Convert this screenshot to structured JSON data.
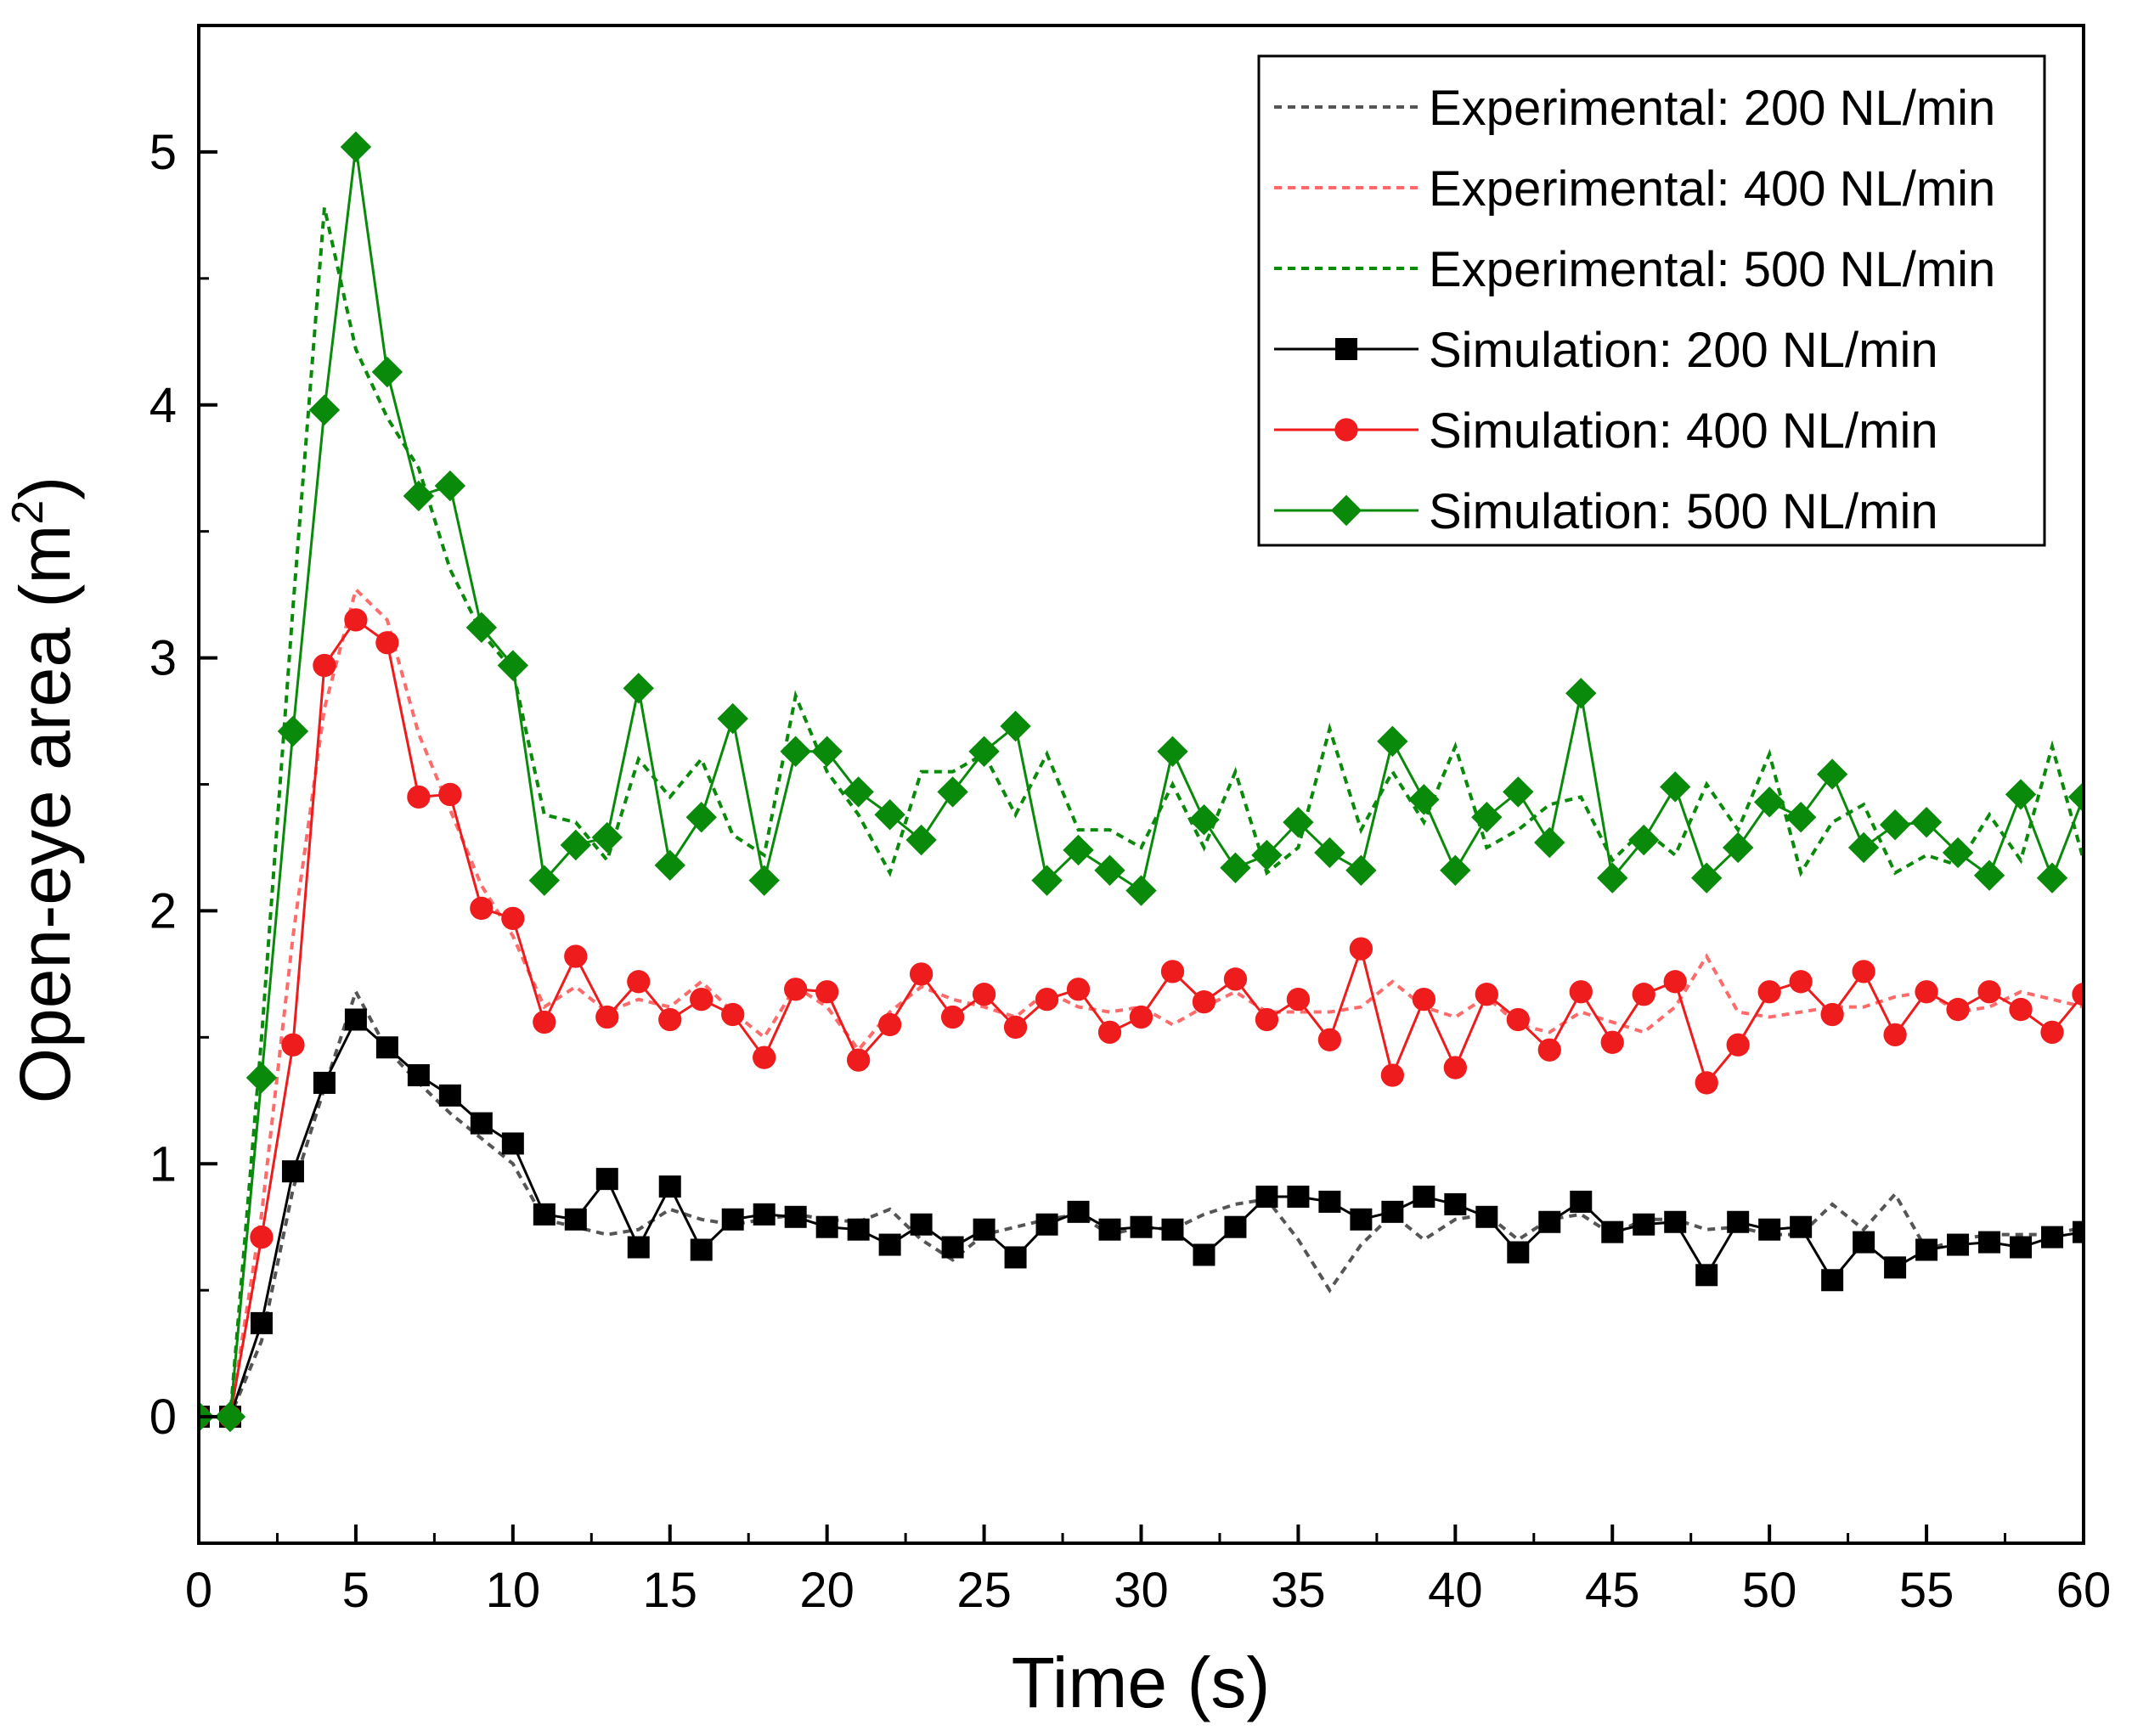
{
  "chart_data": {
    "type": "line",
    "xlabel": "Time (s)",
    "ylabel": "Open-eye area (m",
    "ylabel_sup": "2",
    "ylabel_end": ")",
    "xlim": [
      0,
      60
    ],
    "ylim": [
      -0.5,
      5.5
    ],
    "xticks": [
      0,
      5,
      10,
      15,
      20,
      25,
      30,
      35,
      40,
      45,
      50,
      55,
      60
    ],
    "yticks": [
      0,
      1,
      2,
      3,
      4,
      5
    ],
    "grid": false,
    "legend_position": "top-right",
    "series": [
      {
        "name": "Experimental: 200 NL/min",
        "kind": "experimental",
        "color": "#555555",
        "marker": "none",
        "x": [
          0,
          1,
          2,
          3,
          4,
          5,
          6,
          7,
          8,
          9,
          10,
          11,
          12,
          13,
          14,
          15,
          16,
          17,
          18,
          19,
          20,
          21,
          22,
          23,
          24,
          25,
          26,
          27,
          28,
          29,
          30,
          31,
          32,
          33,
          34,
          35,
          36,
          37,
          38,
          39,
          40,
          41,
          42,
          43,
          44,
          45,
          46,
          47,
          48,
          49,
          50,
          51,
          52,
          53,
          54,
          55,
          56,
          57,
          58,
          59,
          60
        ],
        "y": [
          0,
          0,
          0.3,
          0.9,
          1.3,
          1.68,
          1.45,
          1.32,
          1.2,
          1.1,
          1.0,
          0.78,
          0.75,
          0.72,
          0.74,
          0.82,
          0.78,
          0.76,
          0.78,
          0.8,
          0.78,
          0.77,
          0.82,
          0.7,
          0.62,
          0.72,
          0.75,
          0.78,
          0.8,
          0.72,
          0.75,
          0.74,
          0.8,
          0.84,
          0.86,
          0.7,
          0.5,
          0.68,
          0.8,
          0.7,
          0.78,
          0.8,
          0.7,
          0.78,
          0.8,
          0.72,
          0.78,
          0.78,
          0.74,
          0.75,
          0.72,
          0.72,
          0.84,
          0.74,
          0.88,
          0.66,
          0.7,
          0.72,
          0.72,
          0.72,
          0.75
        ]
      },
      {
        "name": "Experimental: 400 NL/min",
        "kind": "experimental",
        "color": "#ff6b6b",
        "marker": "none",
        "x": [
          0,
          1,
          2,
          3,
          4,
          5,
          6,
          7,
          8,
          9,
          10,
          11,
          12,
          13,
          14,
          15,
          16,
          17,
          18,
          19,
          20,
          21,
          22,
          23,
          24,
          25,
          26,
          27,
          28,
          29,
          30,
          31,
          32,
          33,
          34,
          35,
          36,
          37,
          38,
          39,
          40,
          41,
          42,
          43,
          44,
          45,
          46,
          47,
          48,
          49,
          50,
          51,
          52,
          53,
          54,
          55,
          56,
          57,
          58,
          59,
          60
        ],
        "y": [
          0,
          0,
          0.8,
          1.9,
          2.8,
          3.27,
          3.15,
          2.7,
          2.4,
          2.1,
          1.9,
          1.62,
          1.7,
          1.6,
          1.65,
          1.62,
          1.72,
          1.6,
          1.5,
          1.7,
          1.62,
          1.45,
          1.6,
          1.7,
          1.65,
          1.62,
          1.58,
          1.68,
          1.62,
          1.6,
          1.62,
          1.55,
          1.62,
          1.68,
          1.6,
          1.6,
          1.6,
          1.62,
          1.72,
          1.62,
          1.58,
          1.66,
          1.55,
          1.52,
          1.6,
          1.56,
          1.52,
          1.62,
          1.82,
          1.6,
          1.58,
          1.6,
          1.62,
          1.62,
          1.66,
          1.68,
          1.6,
          1.62,
          1.68,
          1.65,
          1.62
        ]
      },
      {
        "name": "Experimental: 500 NL/min",
        "kind": "experimental",
        "color": "#0a8a0a",
        "marker": "none",
        "x": [
          0,
          1,
          2,
          3,
          4,
          5,
          6,
          7,
          8,
          9,
          10,
          11,
          12,
          13,
          14,
          15,
          16,
          17,
          18,
          19,
          20,
          21,
          22,
          23,
          24,
          25,
          26,
          27,
          28,
          29,
          30,
          31,
          32,
          33,
          34,
          35,
          36,
          37,
          38,
          39,
          40,
          41,
          42,
          43,
          44,
          45,
          46,
          47,
          48,
          49,
          50,
          51,
          52,
          53,
          54,
          55,
          56,
          57,
          58,
          59,
          60
        ],
        "y": [
          0,
          0,
          1.5,
          3.2,
          4.78,
          4.22,
          3.95,
          3.75,
          3.35,
          3.1,
          2.95,
          2.38,
          2.35,
          2.2,
          2.6,
          2.45,
          2.6,
          2.3,
          2.22,
          2.85,
          2.55,
          2.38,
          2.15,
          2.55,
          2.55,
          2.62,
          2.38,
          2.62,
          2.32,
          2.32,
          2.25,
          2.5,
          2.25,
          2.55,
          2.15,
          2.25,
          2.72,
          2.32,
          2.55,
          2.35,
          2.65,
          2.25,
          2.32,
          2.42,
          2.45,
          2.2,
          2.32,
          2.22,
          2.5,
          2.32,
          2.62,
          2.15,
          2.35,
          2.42,
          2.15,
          2.22,
          2.18,
          2.38,
          2.2,
          2.65,
          2.2
        ]
      },
      {
        "name": "Simulation: 200 NL/min",
        "kind": "simulation",
        "color": "#000000",
        "marker": "square",
        "x": [
          0,
          1,
          2,
          3,
          4,
          5,
          6,
          7,
          8,
          9,
          10,
          11,
          12,
          13,
          14,
          15,
          16,
          17,
          18,
          19,
          20,
          21,
          22,
          23,
          24,
          25,
          26,
          27,
          28,
          29,
          30,
          31,
          32,
          33,
          34,
          35,
          36,
          37,
          38,
          39,
          40,
          41,
          42,
          43,
          44,
          45,
          46,
          47,
          48,
          49,
          50,
          51,
          52,
          53,
          54,
          55,
          56,
          57,
          58,
          59,
          60
        ],
        "y": [
          0,
          0,
          0.37,
          0.97,
          1.32,
          1.57,
          1.46,
          1.35,
          1.27,
          1.16,
          1.08,
          0.8,
          0.78,
          0.94,
          0.67,
          0.91,
          0.66,
          0.78,
          0.8,
          0.79,
          0.75,
          0.74,
          0.68,
          0.76,
          0.67,
          0.74,
          0.63,
          0.76,
          0.81,
          0.74,
          0.75,
          0.74,
          0.64,
          0.75,
          0.87,
          0.87,
          0.85,
          0.78,
          0.81,
          0.87,
          0.84,
          0.79,
          0.65,
          0.77,
          0.85,
          0.73,
          0.76,
          0.77,
          0.56,
          0.77,
          0.74,
          0.75,
          0.54,
          0.69,
          0.59,
          0.66,
          0.68,
          0.69,
          0.67,
          0.71,
          0.73
        ]
      },
      {
        "name": "Simulation: 400 NL/min",
        "kind": "simulation",
        "color": "#ee1c1c",
        "marker": "circle",
        "x": [
          0,
          1,
          2,
          3,
          4,
          5,
          6,
          7,
          8,
          9,
          10,
          11,
          12,
          13,
          14,
          15,
          16,
          17,
          18,
          19,
          20,
          21,
          22,
          23,
          24,
          25,
          26,
          27,
          28,
          29,
          30,
          31,
          32,
          33,
          34,
          35,
          36,
          37,
          38,
          39,
          40,
          41,
          42,
          43,
          44,
          45,
          46,
          47,
          48,
          49,
          50,
          51,
          52,
          53,
          54,
          55,
          56,
          57,
          58,
          59,
          60
        ],
        "y": [
          0,
          0,
          0.71,
          1.47,
          2.97,
          3.15,
          3.06,
          2.45,
          2.46,
          2.01,
          1.97,
          1.56,
          1.82,
          1.58,
          1.72,
          1.57,
          1.65,
          1.59,
          1.42,
          1.69,
          1.68,
          1.41,
          1.55,
          1.75,
          1.58,
          1.67,
          1.54,
          1.65,
          1.69,
          1.52,
          1.58,
          1.76,
          1.64,
          1.73,
          1.57,
          1.65,
          1.49,
          1.85,
          1.35,
          1.65,
          1.38,
          1.67,
          1.57,
          1.45,
          1.68,
          1.48,
          1.67,
          1.72,
          1.32,
          1.47,
          1.68,
          1.72,
          1.59,
          1.76,
          1.51,
          1.68,
          1.61,
          1.68,
          1.61,
          1.52,
          1.67
        ]
      },
      {
        "name": "Simulation: 500 NL/min",
        "kind": "simulation",
        "color": "#0a8a0a",
        "marker": "diamond",
        "x": [
          0,
          1,
          2,
          3,
          4,
          5,
          6,
          7,
          8,
          9,
          10,
          11,
          12,
          13,
          14,
          15,
          16,
          17,
          18,
          19,
          20,
          21,
          22,
          23,
          24,
          25,
          26,
          27,
          28,
          29,
          30,
          31,
          32,
          33,
          34,
          35,
          36,
          37,
          38,
          39,
          40,
          41,
          42,
          43,
          44,
          45,
          46,
          47,
          48,
          49,
          50,
          51,
          52,
          53,
          54,
          55,
          56,
          57,
          58,
          59,
          60
        ],
        "y": [
          0,
          0,
          1.34,
          2.71,
          3.98,
          5.02,
          4.13,
          3.64,
          3.68,
          3.12,
          2.97,
          2.12,
          2.26,
          2.29,
          2.88,
          2.18,
          2.37,
          2.76,
          2.12,
          2.63,
          2.63,
          2.47,
          2.38,
          2.28,
          2.47,
          2.63,
          2.73,
          2.12,
          2.24,
          2.16,
          2.08,
          2.63,
          2.36,
          2.17,
          2.22,
          2.35,
          2.23,
          2.16,
          2.67,
          2.44,
          2.16,
          2.37,
          2.47,
          2.27,
          2.86,
          2.13,
          2.28,
          2.49,
          2.13,
          2.25,
          2.43,
          2.37,
          2.54,
          2.25,
          2.34,
          2.35,
          2.23,
          2.14,
          2.46,
          2.13,
          2.45
        ]
      }
    ]
  }
}
